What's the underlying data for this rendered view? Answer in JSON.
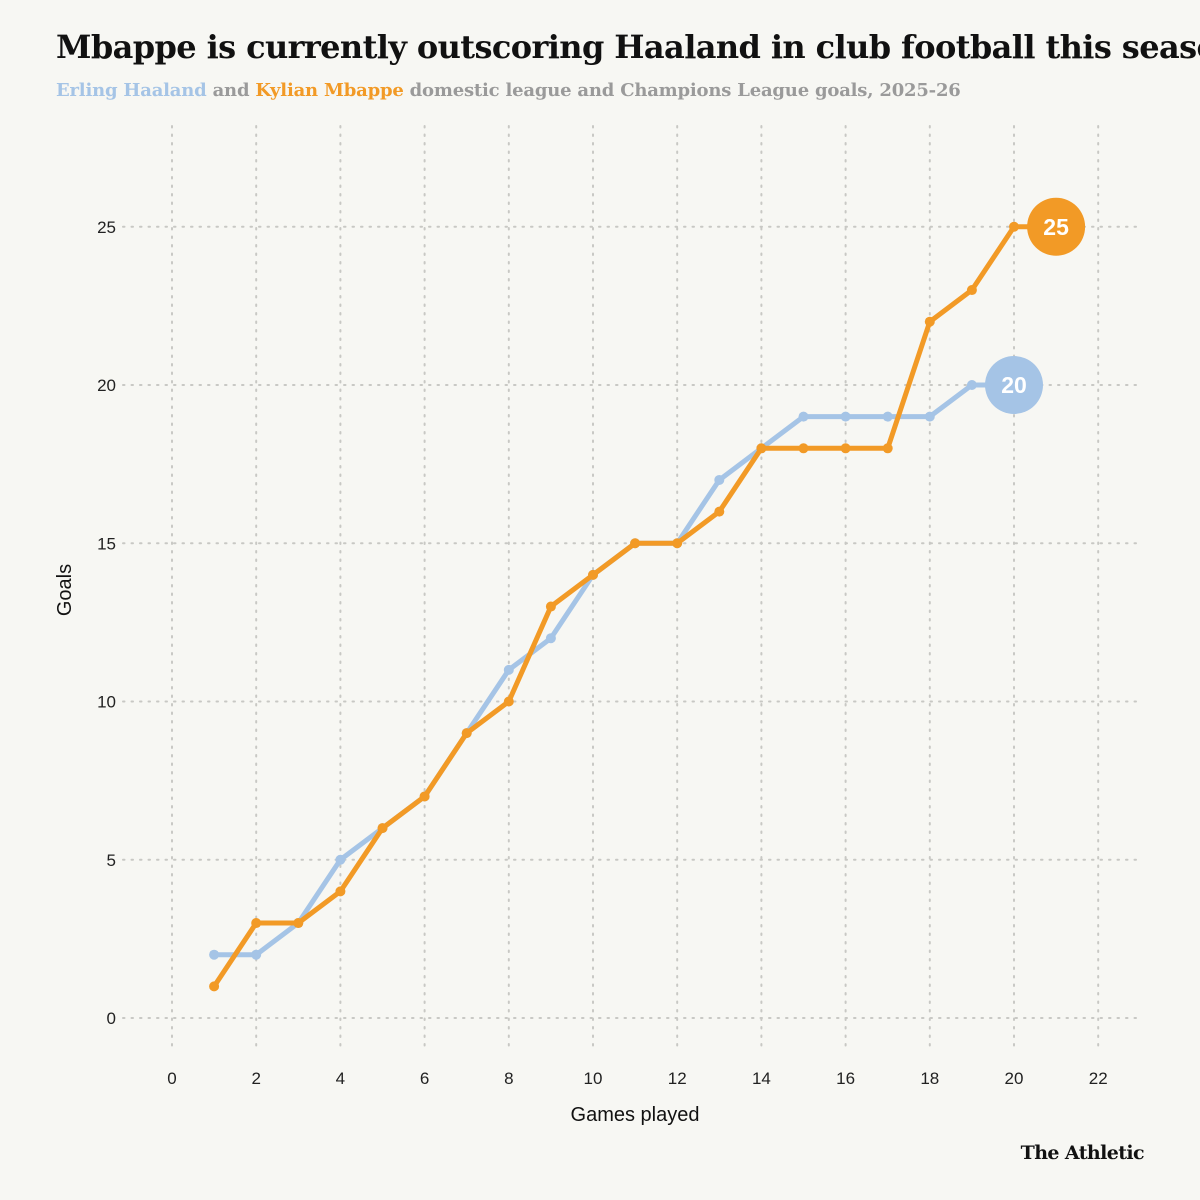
{
  "header": {
    "title": "Mbappe is currently outscoring Haaland in club football this season",
    "subtitle_name_a": "Erling Haaland",
    "subtitle_and": " and ",
    "subtitle_name_b": "Kylian Mbappe",
    "subtitle_rest": " domestic league and Champions League goals, 2025-26"
  },
  "brand": "The Athletic",
  "colors": {
    "haaland": "#a5c4e6",
    "mbappe": "#f29a26",
    "grid": "#c8c8c4",
    "background": "#f7f7f3"
  },
  "chart_data": {
    "type": "line",
    "xlabel": "Games played",
    "ylabel": "Goals",
    "xlim": [
      0,
      22
    ],
    "ylim": [
      0,
      27
    ],
    "xticks": [
      0,
      2,
      4,
      6,
      8,
      10,
      12,
      14,
      16,
      18,
      20,
      22
    ],
    "yticks": [
      0,
      5,
      10,
      15,
      20,
      25
    ],
    "grid": true,
    "series": [
      {
        "name": "Erling Haaland",
        "color": "#a5c4e6",
        "x": [
          1,
          2,
          3,
          4,
          5,
          6,
          7,
          8,
          9,
          10,
          11,
          12,
          13,
          14,
          15,
          16,
          17,
          18,
          19,
          20
        ],
        "y": [
          2,
          2,
          3,
          5,
          6,
          7,
          9,
          11,
          12,
          14,
          15,
          15,
          17,
          18,
          19,
          19,
          19,
          19,
          20,
          20
        ],
        "end_label": "20"
      },
      {
        "name": "Kylian Mbappe",
        "color": "#f29a26",
        "x": [
          1,
          2,
          3,
          4,
          5,
          6,
          7,
          8,
          9,
          10,
          11,
          12,
          13,
          14,
          15,
          16,
          17,
          18,
          19,
          20,
          21
        ],
        "y": [
          1,
          3,
          3,
          4,
          6,
          7,
          9,
          10,
          13,
          14,
          15,
          15,
          16,
          18,
          18,
          18,
          18,
          22,
          23,
          25,
          25
        ],
        "end_label": "25"
      }
    ]
  }
}
